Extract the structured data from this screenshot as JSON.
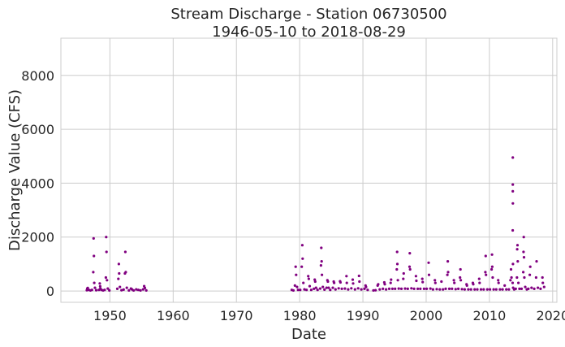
{
  "chart_data": {
    "type": "scatter",
    "title": "Stream Discharge - Station 06730500",
    "subtitle": "1946-05-10 to 2018-08-29",
    "xlabel": "Date",
    "ylabel": "Discharge Value (CFS)",
    "xlim": [
      "1942-04-01",
      "2020-09-01"
    ],
    "ylim": [
      -420,
      9380
    ],
    "xticks": [
      "1950",
      "1960",
      "1970",
      "1980",
      "1990",
      "2000",
      "2010",
      "2020"
    ],
    "yticks": [
      "0",
      "2000",
      "4000",
      "6000",
      "8000"
    ],
    "grid": true,
    "color": "#800080",
    "series": [
      {
        "x": [
          "1946-05-10",
          "1946-06-01",
          "1946-07-01",
          "1946-09-01",
          "1946-12-01",
          "1947-03-01",
          "1947-05-15",
          "1947-06-05",
          "1947-06-20",
          "1947-07-10",
          "1947-08-20",
          "1947-11-01",
          "1948-04-01",
          "1948-05-25",
          "1948-06-15",
          "1948-07-01",
          "1948-09-01",
          "1948-12-01",
          "1949-03-01",
          "1949-05-10",
          "1949-06-01",
          "1949-06-20",
          "1949-07-15",
          "1949-09-01",
          "1949-12-01",
          "1951-03-01",
          "1951-05-01",
          "1951-06-01",
          "1951-06-20",
          "1951-08-01",
          "1951-11-01",
          "1952-03-01",
          "1952-05-15",
          "1952-06-10",
          "1952-07-01",
          "1952-09-01",
          "1953-01-01",
          "1953-05-01",
          "1953-07-01",
          "1953-10-01",
          "1954-03-01",
          "1954-07-01",
          "1954-11-01",
          "1955-04-01",
          "1955-06-01",
          "1955-07-15",
          "1955-10-01",
          "1978-10-01",
          "1979-01-01",
          "1979-04-01",
          "1979-05-15",
          "1979-06-10",
          "1979-08-01",
          "1979-10-01",
          "1980-02-01",
          "1980-05-01",
          "1980-06-01",
          "1980-06-20",
          "1980-08-01",
          "1980-10-01",
          "1981-02-01",
          "1981-05-10",
          "1981-06-10",
          "1981-08-01",
          "1981-11-01",
          "1982-04-01",
          "1982-05-20",
          "1982-06-15",
          "1982-08-01",
          "1982-11-01",
          "1983-04-01",
          "1983-05-15",
          "1983-06-05",
          "1983-06-20",
          "1983-07-10",
          "1983-09-01",
          "1983-12-01",
          "1984-04-01",
          "1984-05-20",
          "1984-06-15",
          "1984-08-01",
          "1984-11-01",
          "1985-04-01",
          "1985-05-20",
          "1985-06-15",
          "1985-09-01",
          "1986-03-01",
          "1986-05-20",
          "1986-06-15",
          "1986-09-01",
          "1987-03-01",
          "1987-05-25",
          "1987-06-15",
          "1987-09-01",
          "1988-03-01",
          "1988-05-20",
          "1988-06-15",
          "1988-10-01",
          "1989-04-01",
          "1989-05-25",
          "1989-06-15",
          "1989-10-01",
          "1990-04-01",
          "1990-06-01",
          "1990-07-01",
          "1990-10-01",
          "1991-09-01",
          "1992-01-01",
          "1992-05-01",
          "1992-06-01",
          "1992-09-01",
          "1993-03-01",
          "1993-05-20",
          "1993-06-15",
          "1993-09-01",
          "1994-03-01",
          "1994-05-20",
          "1994-06-15",
          "1994-09-01",
          "1995-02-01",
          "1995-05-10",
          "1995-06-01",
          "1995-06-15",
          "1995-07-10",
          "1995-09-01",
          "1996-02-01",
          "1996-05-20",
          "1996-06-15",
          "1996-09-01",
          "1997-02-01",
          "1997-05-15",
          "1997-06-01",
          "1997-06-20",
          "1997-09-01",
          "1998-02-01",
          "1998-05-20",
          "1998-06-15",
          "1998-09-01",
          "1999-02-01",
          "1999-05-20",
          "1999-06-15",
          "1999-09-01",
          "2000-02-01",
          "2000-05-20",
          "2000-06-15",
          "2000-09-01",
          "2001-02-01",
          "2001-05-20",
          "2001-06-15",
          "2001-09-01",
          "2002-03-01",
          "2002-06-01",
          "2002-09-01",
          "2003-02-01",
          "2003-05-10",
          "2003-06-01",
          "2003-06-20",
          "2003-09-01",
          "2004-02-01",
          "2004-05-20",
          "2004-06-15",
          "2004-09-01",
          "2005-02-01",
          "2005-05-10",
          "2005-06-01",
          "2005-06-20",
          "2005-09-01",
          "2006-02-01",
          "2006-05-20",
          "2006-06-15",
          "2006-09-01",
          "2007-02-01",
          "2007-05-20",
          "2007-06-15",
          "2007-09-01",
          "2008-02-01",
          "2008-05-20",
          "2008-06-15",
          "2008-09-01",
          "2009-02-01",
          "2009-05-10",
          "2009-06-01",
          "2009-06-20",
          "2009-09-01",
          "2010-02-01",
          "2010-05-10",
          "2010-06-01",
          "2010-06-15",
          "2010-07-10",
          "2010-09-01",
          "2011-02-01",
          "2011-05-20",
          "2011-06-15",
          "2011-09-01",
          "2012-02-01",
          "2012-06-01",
          "2012-09-01",
          "2013-02-01",
          "2013-05-01",
          "2013-06-01",
          "2013-07-01",
          "2013-09-01",
          "2013-09-10",
          "2013-09-12",
          "2013-09-13",
          "2013-09-14",
          "2013-09-15",
          "2013-09-20",
          "2013-10-01",
          "2013-12-01",
          "2014-03-01",
          "2014-05-10",
          "2014-05-25",
          "2014-06-10",
          "2014-06-25",
          "2014-08-01",
          "2014-10-01",
          "2015-02-01",
          "2015-05-10",
          "2015-05-25",
          "2015-06-05",
          "2015-06-20",
          "2015-07-10",
          "2015-09-01",
          "2015-12-01",
          "2016-03-01",
          "2016-05-20",
          "2016-06-15",
          "2016-09-01",
          "2017-02-01",
          "2017-05-20",
          "2017-06-15",
          "2017-09-01",
          "2018-02-01",
          "2018-05-20",
          "2018-06-15",
          "2018-08-29"
        ],
        "y": [
          30,
          90,
          110,
          40,
          20,
          40,
          700,
          1950,
          1300,
          300,
          120,
          30,
          40,
          280,
          170,
          90,
          40,
          20,
          40,
          500,
          2000,
          1450,
          400,
          90,
          20,
          80,
          450,
          1000,
          650,
          150,
          30,
          50,
          650,
          1450,
          700,
          120,
          20,
          90,
          60,
          20,
          60,
          40,
          20,
          60,
          180,
          110,
          20,
          40,
          20,
          200,
          900,
          600,
          150,
          40,
          40,
          900,
          1700,
          1200,
          300,
          60,
          40,
          550,
          450,
          180,
          40,
          80,
          420,
          350,
          120,
          40,
          90,
          950,
          1600,
          1100,
          600,
          150,
          50,
          120,
          400,
          350,
          120,
          40,
          120,
          350,
          300,
          60,
          100,
          360,
          320,
          80,
          90,
          550,
          300,
          60,
          100,
          420,
          280,
          60,
          100,
          560,
          350,
          60,
          80,
          200,
          150,
          40,
          20,
          30,
          200,
          250,
          60,
          80,
          320,
          250,
          60,
          80,
          300,
          420,
          80,
          80,
          800,
          1450,
          1000,
          400,
          90,
          80,
          450,
          650,
          90,
          80,
          900,
          1400,
          800,
          100,
          80,
          550,
          380,
          80,
          80,
          450,
          330,
          80,
          80,
          1050,
          600,
          90,
          60,
          400,
          300,
          70,
          60,
          350,
          60,
          80,
          600,
          1100,
          700,
          80,
          80,
          400,
          300,
          70,
          80,
          500,
          800,
          400,
          70,
          60,
          250,
          200,
          60,
          60,
          300,
          250,
          60,
          60,
          450,
          300,
          60,
          60,
          700,
          1300,
          600,
          60,
          60,
          800,
          1350,
          900,
          500,
          60,
          60,
          400,
          300,
          60,
          60,
          200,
          60,
          60,
          400,
          800,
          500,
          300,
          2250,
          4950,
          3950,
          3700,
          3250,
          1000,
          120,
          60,
          80,
          500,
          1550,
          1700,
          1100,
          300,
          80,
          80,
          700,
          1450,
          2000,
          1250,
          500,
          150,
          60,
          80,
          600,
          900,
          120,
          80,
          500,
          1100,
          120,
          80,
          500,
          300,
          150
        ]
      }
    ]
  }
}
